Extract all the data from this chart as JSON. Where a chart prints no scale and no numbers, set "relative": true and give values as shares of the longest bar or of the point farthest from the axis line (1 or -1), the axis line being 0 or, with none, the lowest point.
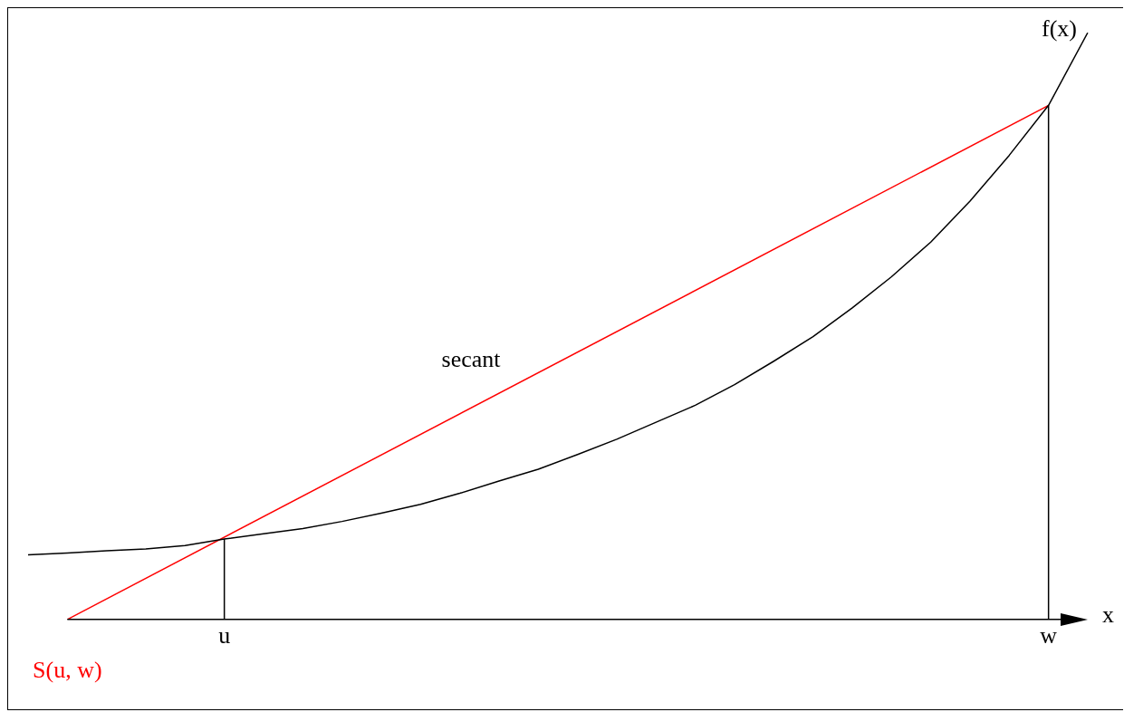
{
  "chart_data": {
    "type": "line",
    "relative": true,
    "xlabel": "x",
    "categories": [
      null,
      null,
      null,
      null,
      null,
      "u",
      null,
      null,
      null,
      null,
      null,
      null,
      null,
      null,
      null,
      null,
      null,
      null,
      null,
      null,
      null,
      null,
      null,
      null,
      null,
      null,
      "w",
      null
    ],
    "series": [
      {
        "name": "f(x)",
        "color": "#000000",
        "values": [
          0.11,
          0.113,
          0.117,
          0.12,
          0.126,
          0.137,
          0.146,
          0.155,
          0.167,
          0.181,
          0.196,
          0.215,
          0.236,
          0.256,
          0.281,
          0.307,
          0.336,
          0.365,
          0.4,
          0.44,
          0.482,
          0.531,
          0.584,
          0.643,
          0.713,
          0.791,
          0.876,
          1
        ]
      },
      {
        "name": "secant",
        "color": "#ff0000",
        "values": [
          null,
          0,
          null,
          null,
          null,
          null,
          null,
          null,
          null,
          null,
          null,
          null,
          null,
          null,
          null,
          null,
          null,
          null,
          null,
          null,
          null,
          null,
          null,
          null,
          null,
          null,
          0.876,
          null
        ]
      }
    ],
    "annotations": [
      {
        "text": "S(u, w)",
        "y": 0
      }
    ],
    "ref_lines": [
      {
        "axis": "x",
        "value": "u"
      },
      {
        "axis": "x",
        "value": "w"
      }
    ],
    "grid": false,
    "legend": false,
    "marker": "none",
    "line_style": "solid"
  }
}
